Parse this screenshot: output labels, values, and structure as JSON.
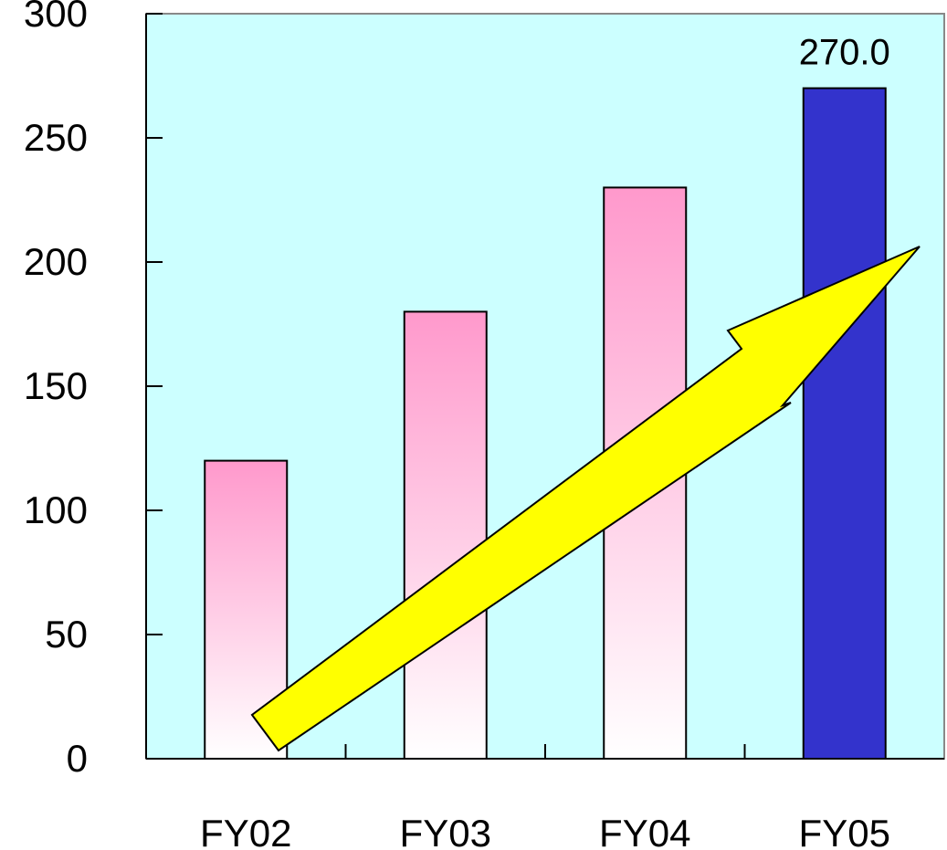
{
  "chart_data": {
    "type": "bar",
    "categories": [
      "FY02",
      "FY03",
      "FY04",
      "FY05"
    ],
    "values": [
      120,
      180,
      230,
      270
    ],
    "title": "",
    "xlabel": "",
    "ylabel": "",
    "ylim": [
      0,
      300
    ],
    "y_ticks": [
      "0",
      "50",
      "100",
      "150",
      "200",
      "250",
      "300"
    ],
    "data_labels": [
      "",
      "",
      "",
      "270.0"
    ],
    "grid": false,
    "legend": "none",
    "trend_arrow": "up"
  },
  "colors": {
    "plot_background": "#ccffff",
    "bar_gradient_top": "#ff99cc",
    "bar_gradient_bottom": "#ffffff",
    "highlight_bar": "#3333cc",
    "arrow": "#ffff00",
    "outline": "#000000",
    "frame": "#888888"
  }
}
